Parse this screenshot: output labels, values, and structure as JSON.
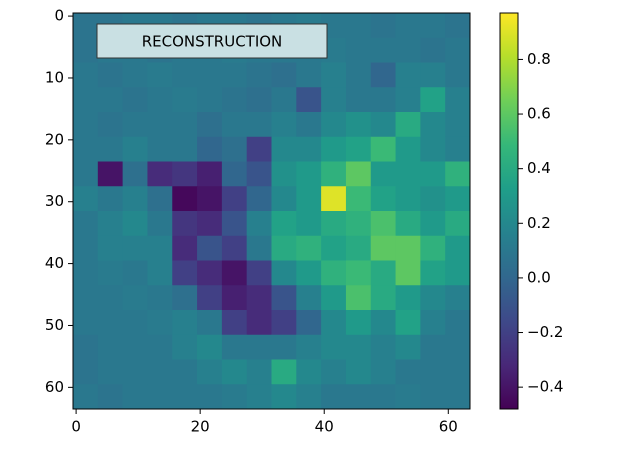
{
  "chart_data": {
    "type": "heatmap",
    "colormap": "viridis",
    "annotation": "RECONSTRUCTION",
    "xlim": [
      -0.5,
      63.5
    ],
    "ylim": [
      63.5,
      -0.5
    ],
    "xticks": [
      0,
      20,
      40,
      60
    ],
    "yticks": [
      0,
      10,
      20,
      30,
      40,
      50,
      60
    ],
    "clim": [
      -0.48,
      0.97
    ],
    "cticks": [
      {
        "value": -0.4,
        "label": "−0.4"
      },
      {
        "value": -0.2,
        "label": "−0.2"
      },
      {
        "value": 0.0,
        "label": "0.0"
      },
      0.2,
      0.4,
      0.6,
      0.8
    ],
    "values": [
      [
        0.08,
        0.08,
        0.1,
        0.1,
        0.08,
        0.1,
        0.1,
        0.08,
        0.1,
        0.12,
        0.1,
        0.1,
        0.08,
        0.1,
        0.1,
        0.08
      ],
      [
        0.08,
        0.1,
        0.1,
        0.08,
        0.1,
        0.1,
        0.12,
        0.1,
        0.1,
        0.1,
        0.12,
        0.1,
        0.1,
        0.1,
        0.08,
        0.1
      ],
      [
        0.1,
        0.08,
        0.1,
        0.12,
        0.1,
        0.1,
        0.1,
        0.08,
        0.05,
        0.1,
        0.15,
        0.1,
        0.0,
        0.15,
        0.15,
        0.1
      ],
      [
        0.1,
        0.1,
        0.08,
        0.1,
        0.12,
        0.1,
        0.08,
        0.05,
        0.1,
        -0.1,
        0.15,
        0.1,
        0.1,
        0.15,
        0.35,
        0.15
      ],
      [
        0.1,
        0.08,
        0.1,
        0.1,
        0.1,
        0.05,
        0.1,
        0.1,
        0.15,
        0.1,
        0.2,
        0.25,
        0.2,
        0.4,
        0.2,
        0.15
      ],
      [
        0.1,
        0.1,
        0.15,
        0.1,
        0.1,
        0.0,
        0.05,
        -0.2,
        0.2,
        0.2,
        0.3,
        0.35,
        0.5,
        0.3,
        0.2,
        0.15
      ],
      [
        0.1,
        -0.4,
        0.05,
        -0.3,
        -0.25,
        -0.35,
        0.0,
        -0.1,
        0.25,
        0.3,
        0.45,
        0.6,
        0.3,
        0.3,
        0.3,
        0.45
      ],
      [
        0.15,
        0.1,
        0.15,
        0.05,
        -0.45,
        -0.4,
        -0.2,
        0.0,
        0.2,
        0.3,
        0.9,
        0.5,
        0.35,
        0.3,
        0.25,
        0.3
      ],
      [
        0.1,
        0.15,
        0.2,
        0.1,
        -0.25,
        -0.3,
        -0.1,
        0.15,
        0.35,
        0.3,
        0.4,
        0.45,
        0.55,
        0.4,
        0.3,
        0.4
      ],
      [
        0.1,
        0.15,
        0.15,
        0.15,
        -0.3,
        -0.1,
        -0.2,
        0.1,
        0.4,
        0.45,
        0.35,
        0.4,
        0.6,
        0.6,
        0.45,
        0.3
      ],
      [
        0.1,
        0.12,
        0.1,
        0.15,
        -0.2,
        -0.3,
        -0.4,
        -0.2,
        0.2,
        0.3,
        0.45,
        0.5,
        0.4,
        0.6,
        0.35,
        0.3
      ],
      [
        0.1,
        0.1,
        0.12,
        0.1,
        0.05,
        -0.2,
        -0.35,
        -0.3,
        -0.1,
        0.15,
        0.3,
        0.55,
        0.4,
        0.3,
        0.2,
        0.15
      ],
      [
        0.1,
        0.1,
        0.1,
        0.12,
        0.15,
        0.1,
        -0.2,
        -0.3,
        -0.2,
        0.0,
        0.2,
        0.3,
        0.2,
        0.35,
        0.15,
        0.1
      ],
      [
        0.08,
        0.1,
        0.1,
        0.1,
        0.15,
        0.2,
        0.1,
        0.1,
        0.1,
        0.15,
        0.2,
        0.2,
        0.15,
        0.2,
        0.1,
        0.1
      ],
      [
        0.08,
        0.1,
        0.1,
        0.1,
        0.1,
        0.15,
        0.2,
        0.15,
        0.4,
        0.2,
        0.15,
        0.2,
        0.15,
        0.1,
        0.1,
        0.1
      ],
      [
        0.1,
        0.08,
        0.1,
        0.1,
        0.1,
        0.1,
        0.12,
        0.15,
        0.2,
        0.15,
        0.1,
        0.1,
        0.1,
        0.12,
        0.1,
        0.1
      ]
    ]
  }
}
